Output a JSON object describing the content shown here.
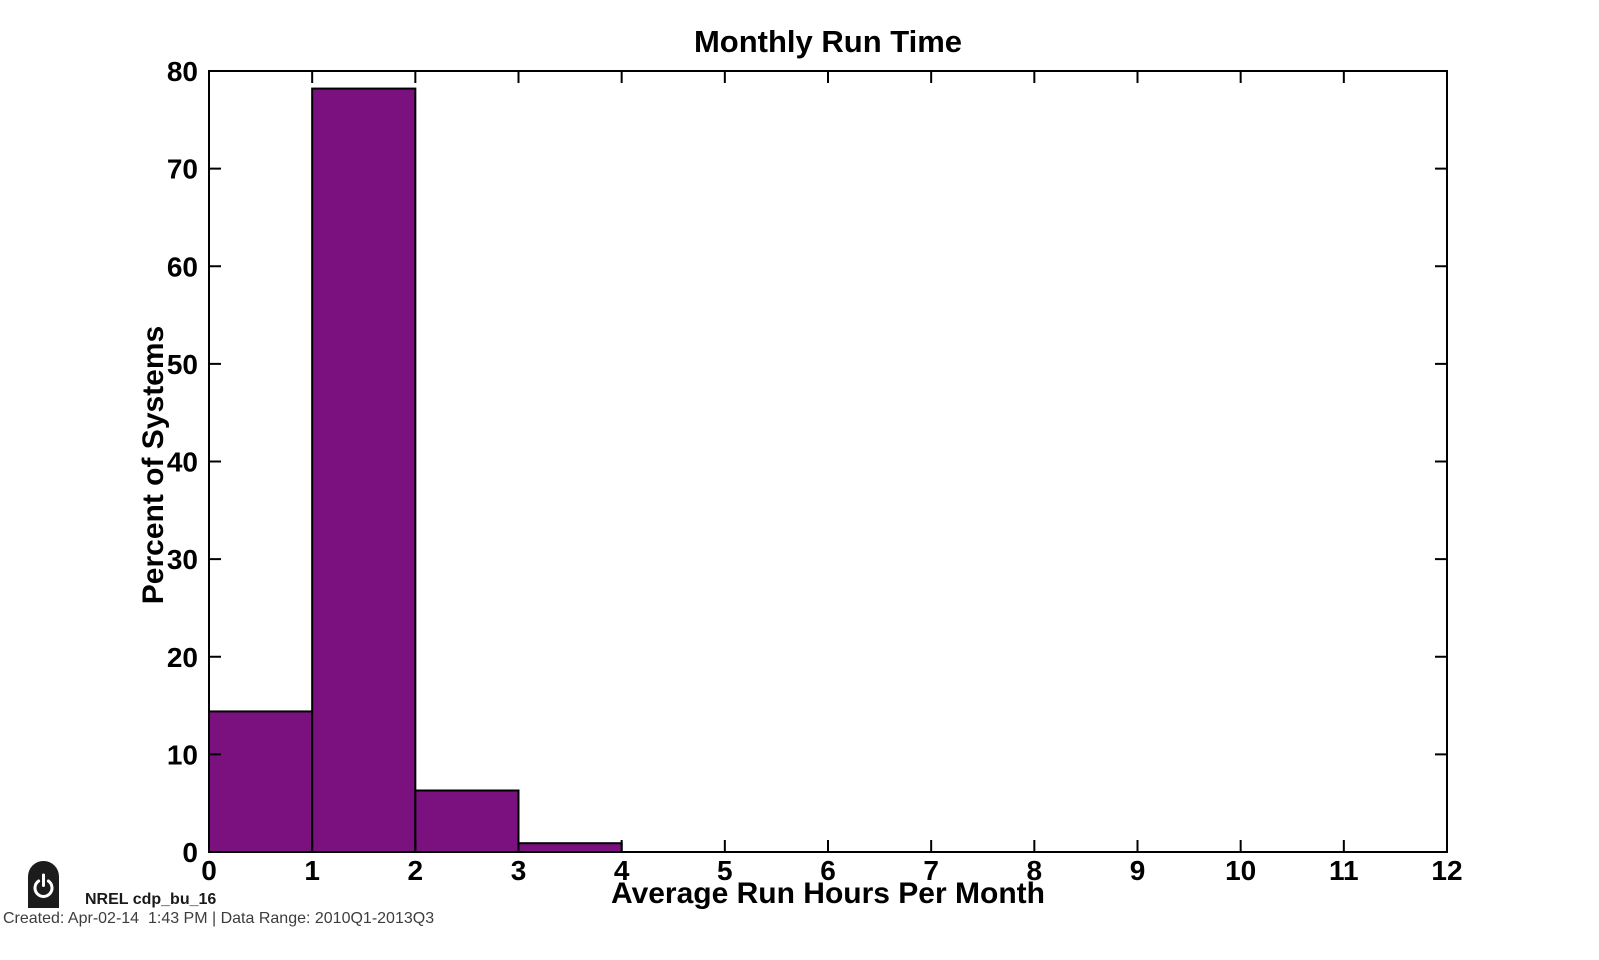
{
  "figure": {
    "background": "#FFFFFF"
  },
  "chart_data": {
    "type": "bar",
    "title": "Monthly Run Time",
    "xlabel": "Average Run Hours Per Month",
    "ylabel": "Percent of Systems",
    "bins": [
      {
        "range": "0-1",
        "x0": 0,
        "x1": 1,
        "value": 14.4
      },
      {
        "range": "1-2",
        "x0": 1,
        "x1": 2,
        "value": 78.2
      },
      {
        "range": "2-3",
        "x0": 2,
        "x1": 3,
        "value": 6.3
      },
      {
        "range": "3-4",
        "x0": 3,
        "x1": 4,
        "value": 0.9
      }
    ],
    "xlim": [
      0,
      12
    ],
    "ylim": [
      0,
      80
    ],
    "xticks": [
      0,
      1,
      2,
      3,
      4,
      5,
      6,
      7,
      8,
      9,
      10,
      11,
      12
    ],
    "yticks": [
      0,
      10,
      20,
      30,
      40,
      50,
      60,
      70,
      80
    ],
    "bar_color": "#7A117F",
    "bar_edge_color": "#000000",
    "axis_color": "#000000",
    "grid": false,
    "legend": null
  },
  "footer": {
    "logo_icon": "power-icon",
    "source_label": "NREL cdp_bu_16",
    "created_line": "Created: Apr-02-14  1:43 PM | Data Range: 2010Q1-2013Q3"
  }
}
